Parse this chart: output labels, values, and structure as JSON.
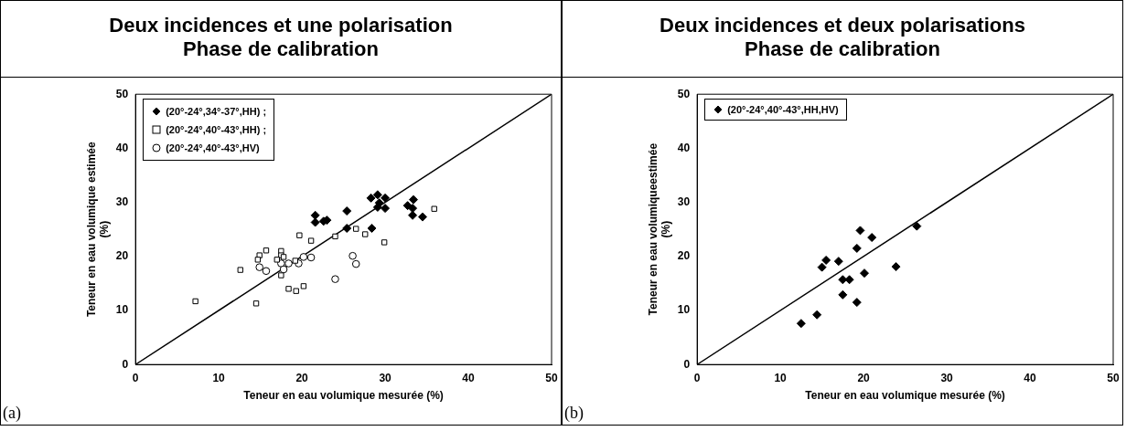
{
  "chart_data": [
    {
      "type": "scatter",
      "title": "Deux incidences et une polarisation",
      "subtitle": "Phase de calibration",
      "xlabel": "Teneur en eau volumique mesurée (%)",
      "ylabel": "Teneur en eau volumique estimée (%)",
      "xlim": [
        0,
        50
      ],
      "ylim": [
        0,
        50
      ],
      "xticks": [
        0,
        10,
        20,
        30,
        40,
        50
      ],
      "yticks": [
        0,
        10,
        20,
        30,
        40,
        50
      ],
      "grid": false,
      "legend": "top left",
      "annotations": [
        "(a)"
      ],
      "series": [
        {
          "name": "(20°-24°,34°-37°,HH) ;",
          "color": "#000000",
          "marker": "diamond",
          "x": [
            21.6,
            21.6,
            22.6,
            23.0,
            25.4,
            25.4,
            28.3,
            29.1,
            29.3,
            29.1,
            30.0,
            30.0,
            28.4,
            32.7,
            33.4,
            33.3,
            33.3,
            34.5
          ],
          "values": [
            27.6,
            26.3,
            26.5,
            26.7,
            28.4,
            25.2,
            30.8,
            31.4,
            29.9,
            29.1,
            30.8,
            28.9,
            25.2,
            29.4,
            30.5,
            28.9,
            27.6,
            27.3
          ]
        },
        {
          "name": "(20°-24°,40°-43°,HH) ;",
          "color": "#000000",
          "marker": "square",
          "x": [
            35.9,
            26.5,
            27.6,
            24.0,
            19.7,
            21.1,
            29.9,
            15.7,
            14.9,
            14.7,
            17.5,
            17.5,
            17.8,
            17.0,
            12.6,
            19.2,
            17.5,
            18.4,
            19.3,
            20.2,
            7.2,
            14.5
          ],
          "values": [
            28.8,
            25.1,
            24.1,
            23.7,
            23.9,
            22.9,
            22.6,
            21.1,
            20.2,
            19.4,
            21.0,
            20.2,
            19.9,
            19.4,
            17.5,
            19.2,
            16.5,
            14.0,
            13.6,
            14.5,
            11.7,
            11.3
          ]
        },
        {
          "name": "(20°-24°,40°-43°,HV)",
          "color": "#000000",
          "marker": "circle",
          "x": [
            14.9,
            15.7,
            17.5,
            17.8,
            18.4,
            19.6,
            20.2,
            21.1,
            26.1,
            26.5,
            24.0
          ],
          "values": [
            18.0,
            17.3,
            18.7,
            17.6,
            18.7,
            18.7,
            19.9,
            19.8,
            20.1,
            18.6,
            15.8
          ]
        },
        {
          "type": "line",
          "color": "#000000",
          "marker": "none",
          "x": [
            0,
            50
          ],
          "values": [
            0,
            50
          ]
        }
      ]
    },
    {
      "type": "scatter",
      "title": "Deux incidences et deux polarisations",
      "subtitle": "Phase de calibration",
      "xlabel": "Teneur en eau volumique mesurée (%)",
      "ylabel": "Teneur en eau volumiqueestimée (%)",
      "xlim": [
        0,
        50
      ],
      "ylim": [
        0,
        50
      ],
      "xticks": [
        0,
        10,
        20,
        30,
        40,
        50
      ],
      "yticks": [
        0,
        10,
        20,
        30,
        40,
        50
      ],
      "grid": false,
      "legend": "top left",
      "annotations": [
        "(b)"
      ],
      "series": [
        {
          "name": "(20°-24°,40°-43°,HH,HV)",
          "color": "#000000",
          "marker": "diamond",
          "x": [
            12.5,
            14.4,
            15.0,
            15.5,
            17.0,
            17.5,
            18.3,
            17.5,
            19.2,
            19.6,
            20.1,
            19.2,
            21.0,
            23.9,
            26.4
          ],
          "values": [
            7.6,
            9.2,
            18.0,
            19.3,
            19.1,
            15.7,
            15.7,
            12.9,
            21.5,
            24.8,
            16.9,
            11.5,
            23.5,
            18.1,
            25.6
          ]
        },
        {
          "type": "line",
          "color": "#000000",
          "marker": "none",
          "x": [
            0,
            50
          ],
          "values": [
            0,
            50
          ]
        }
      ]
    }
  ]
}
